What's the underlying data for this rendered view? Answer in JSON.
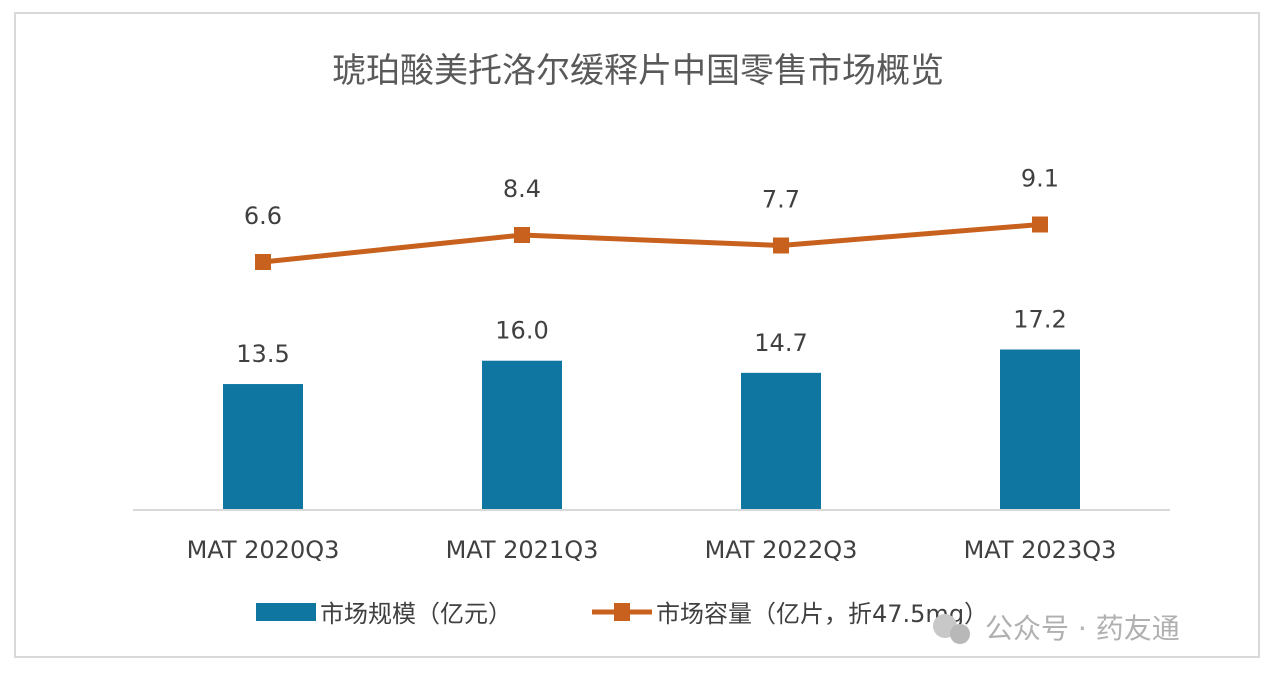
{
  "chart_data": {
    "type": "bar+line",
    "title": "琥珀酸美托洛尔缓释片中国零售市场概览",
    "categories": [
      "MAT 2020Q3",
      "MAT 2021Q3",
      "MAT 2022Q3",
      "MAT 2023Q3"
    ],
    "series": [
      {
        "name": "市场规模（亿元）",
        "type": "bar",
        "values": [
          13.5,
          16.0,
          14.7,
          17.2
        ],
        "labels": [
          "13.5",
          "16.0",
          "14.7",
          "17.2"
        ],
        "color": "#0E76A0"
      },
      {
        "name": "市场容量（亿片，折47.5mg）",
        "type": "line",
        "values": [
          6.6,
          8.4,
          7.7,
          9.1
        ],
        "labels": [
          "6.6",
          "8.4",
          "7.7",
          "9.1"
        ],
        "color": "#C8601E"
      }
    ],
    "legend": "bottom",
    "grid": false
  },
  "watermark": "公众号 · 药友通"
}
